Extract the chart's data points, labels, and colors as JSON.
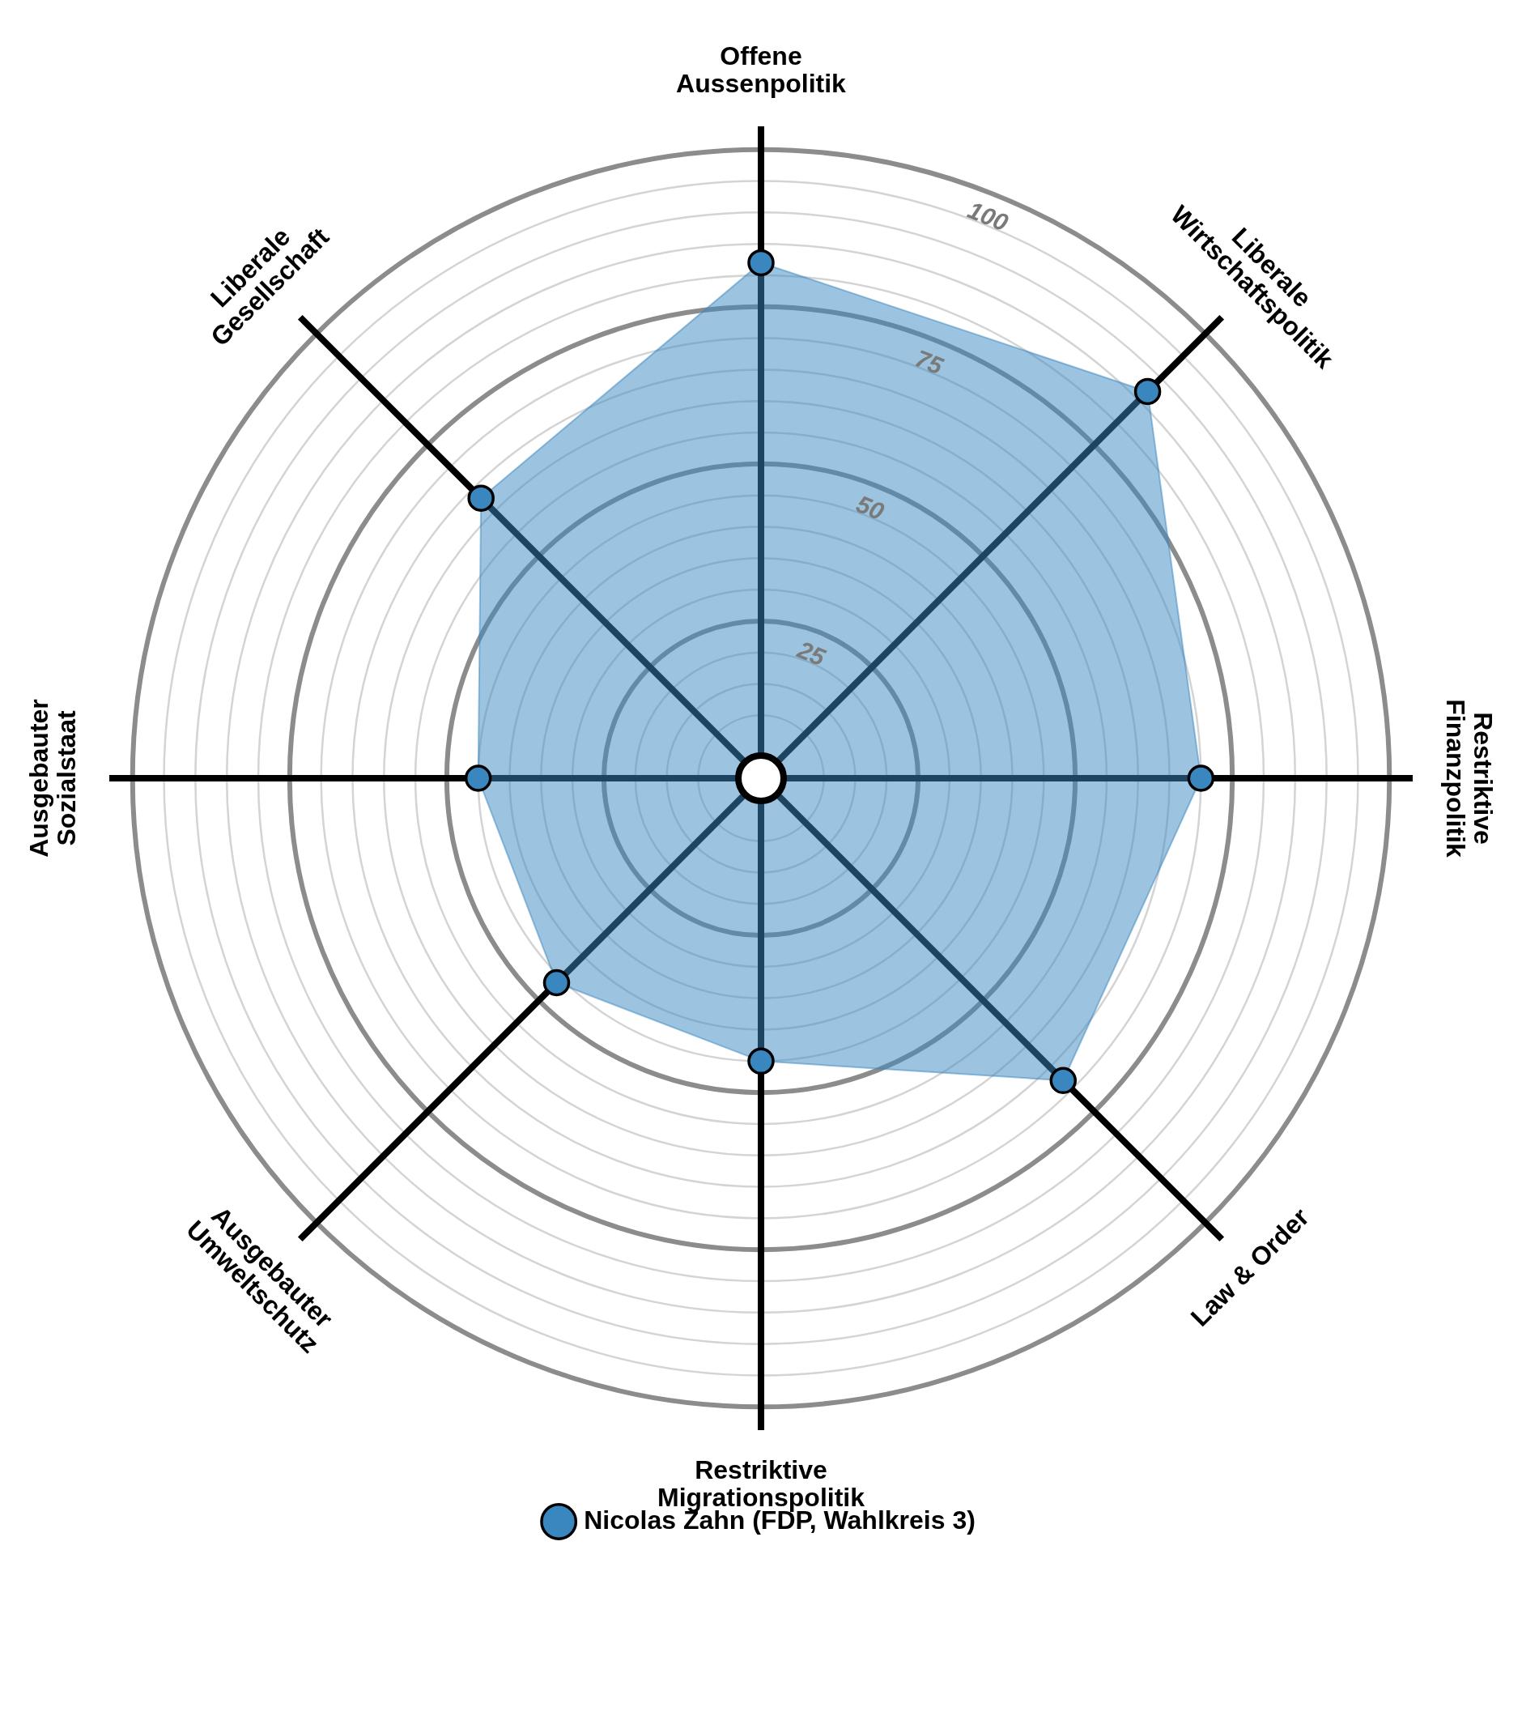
{
  "chart_data": {
    "type": "radar",
    "categories": [
      "Offene\nAussenpolitik",
      "Liberale\nWirtschaftspolitik",
      "Restriktive\nFinanzpolitik",
      "Law & Order",
      "Restriktive\nMigrationspolitik",
      "Ausgebauter\nUmweltschutz",
      "Ausgebauter\nSozialstaat",
      "Liberale\nGesellschaft"
    ],
    "series": [
      {
        "name": "Nicolas Zahn (FDP, Wahlkreis 3)",
        "color": "#3a87c0",
        "values": [
          82,
          87,
          70,
          68,
          45,
          46,
          45,
          63
        ]
      }
    ],
    "ylim": [
      0,
      100
    ],
    "yticks": [
      25,
      50,
      75,
      100
    ],
    "grid": true,
    "legend": "bottom",
    "marker": "circle"
  }
}
